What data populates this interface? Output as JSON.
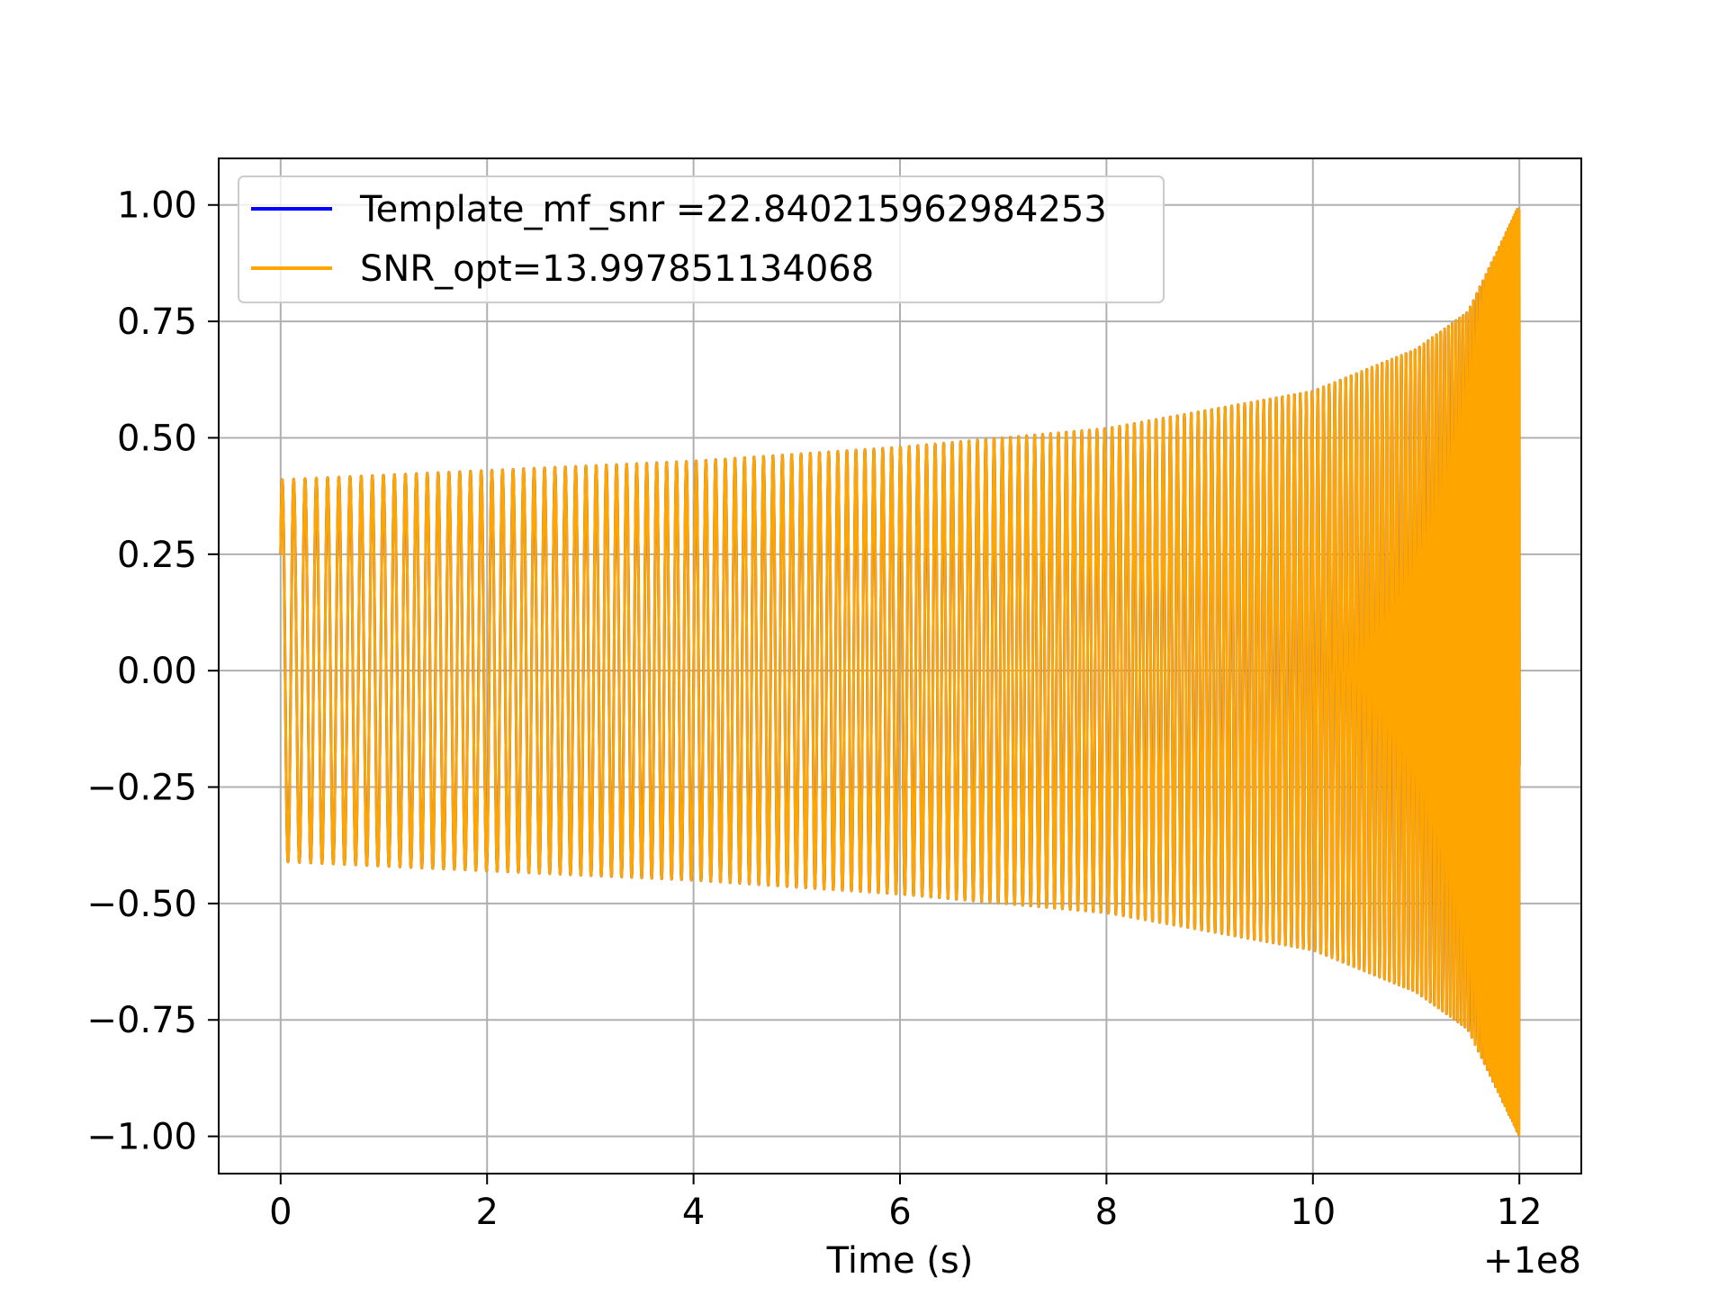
{
  "chart_data": {
    "type": "line",
    "title": "",
    "xlabel": "Time (s)",
    "ylabel": "",
    "x_offset_label": "+1e8",
    "xlim": [
      -0.6,
      12.6
    ],
    "ylim": [
      -1.08,
      1.1
    ],
    "xticks": [
      0,
      2,
      4,
      6,
      8,
      10,
      12
    ],
    "xtick_labels": [
      "0",
      "2",
      "4",
      "6",
      "8",
      "10",
      "12"
    ],
    "yticks": [
      1.0,
      0.75,
      0.5,
      0.25,
      0.0,
      -0.25,
      -0.5,
      -0.75,
      -1.0
    ],
    "ytick_labels": [
      "1.00",
      "0.75",
      "0.50",
      "0.25",
      "0.00",
      "−0.25",
      "−0.50",
      "−0.75",
      "−1.00"
    ],
    "grid": true,
    "legend_position": "upper-left",
    "series": [
      {
        "name": "Template_mf_snr =22.840215962984253",
        "color": "#0000ff",
        "x_start": 0.0,
        "x_end": 12.0,
        "initial_value": 0.25,
        "envelope": {
          "x": [
            0,
            2,
            4,
            6,
            8,
            10,
            11,
            11.5,
            12
          ],
          "y": [
            0.41,
            0.43,
            0.45,
            0.48,
            0.52,
            0.6,
            0.69,
            0.77,
            1.0
          ]
        },
        "cycles": 175
      },
      {
        "name": "SNR_opt=13.997851134068",
        "color": "#ffa500",
        "x_start": 0.0,
        "x_end": 12.0,
        "initial_value": 0.25,
        "envelope": {
          "x": [
            0,
            2,
            4,
            6,
            8,
            10,
            11,
            11.5,
            12
          ],
          "y": [
            0.41,
            0.43,
            0.45,
            0.48,
            0.52,
            0.6,
            0.69,
            0.77,
            1.0
          ]
        },
        "cycles": 175
      }
    ]
  },
  "colors": {
    "grid": "#b0b0b0",
    "axes": "#000000",
    "legend_border": "#cccccc"
  }
}
